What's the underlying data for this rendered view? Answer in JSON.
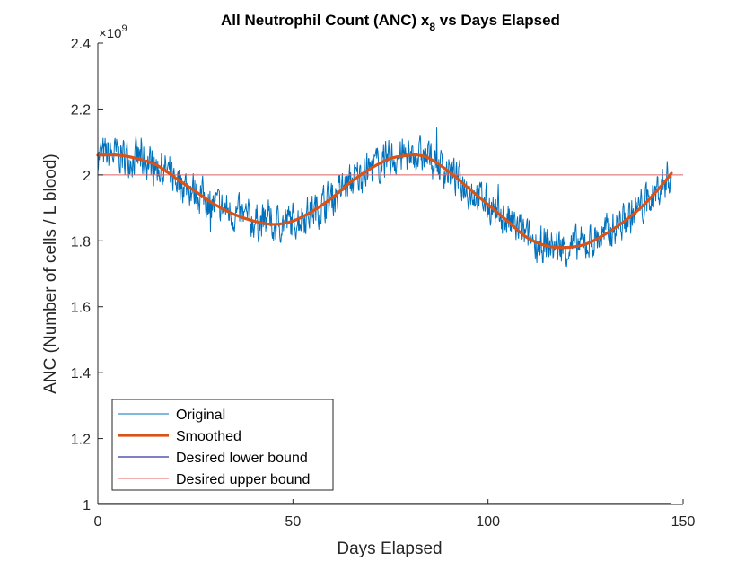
{
  "chart_data": {
    "type": "line",
    "title_main": "All Neutrophil Count (ANC) x",
    "title_subscript": "8",
    "title_rest": " vs Days Elapsed",
    "xlabel": "Days Elapsed",
    "ylabel": "ANC (Number of cells / L blood)",
    "exponent_base": "×10",
    "exponent_power": "9",
    "xlim": [
      0,
      150
    ],
    "ylim": [
      1.0,
      2.4
    ],
    "x_ticks": [
      0,
      50,
      100,
      150
    ],
    "x_tick_labels": [
      "0",
      "50",
      "100",
      "150"
    ],
    "y_ticks": [
      1,
      1.2,
      1.4,
      1.6,
      1.8,
      2,
      2.2,
      2.4
    ],
    "y_tick_labels": [
      "1",
      "1.2",
      "1.4",
      "1.6",
      "1.8",
      "2",
      "2.2",
      "2.4"
    ],
    "grid": false,
    "legend_position": "bottom-left",
    "legend": [
      {
        "label": "Original",
        "color": "#0072bd"
      },
      {
        "label": "Smoothed",
        "color": "#d95319"
      },
      {
        "label": "Desired lower bound",
        "color": "#00008b"
      },
      {
        "label": "Desired upper bound",
        "color": "#e06060"
      }
    ],
    "series": [
      {
        "name": "Smoothed",
        "color": "#d95319",
        "x": [
          0,
          5,
          10,
          15,
          20,
          25,
          30,
          35,
          40,
          45,
          50,
          55,
          60,
          65,
          70,
          75,
          80,
          82,
          85,
          90,
          95,
          100,
          105,
          110,
          115,
          120,
          125,
          130,
          135,
          140,
          145,
          147
        ],
        "y": [
          2.06,
          2.06,
          2.05,
          2.03,
          1.99,
          1.95,
          1.91,
          1.88,
          1.86,
          1.85,
          1.86,
          1.89,
          1.93,
          1.98,
          2.02,
          2.05,
          2.06,
          2.06,
          2.05,
          2.01,
          1.96,
          1.91,
          1.86,
          1.81,
          1.785,
          1.78,
          1.79,
          1.82,
          1.86,
          1.91,
          1.975,
          2.005
        ]
      },
      {
        "name": "Original",
        "color": "#0072bd",
        "x": [
          0,
          147
        ],
        "y_source": "Smoothed"
      },
      {
        "name": "Desired lower bound",
        "color": "#00008b",
        "x": [
          0,
          147
        ],
        "y": [
          1.0,
          1.0
        ]
      },
      {
        "name": "Desired upper bound",
        "color": "#e06060",
        "x": [
          0,
          150
        ],
        "y": [
          2.0,
          2.0
        ]
      }
    ]
  }
}
